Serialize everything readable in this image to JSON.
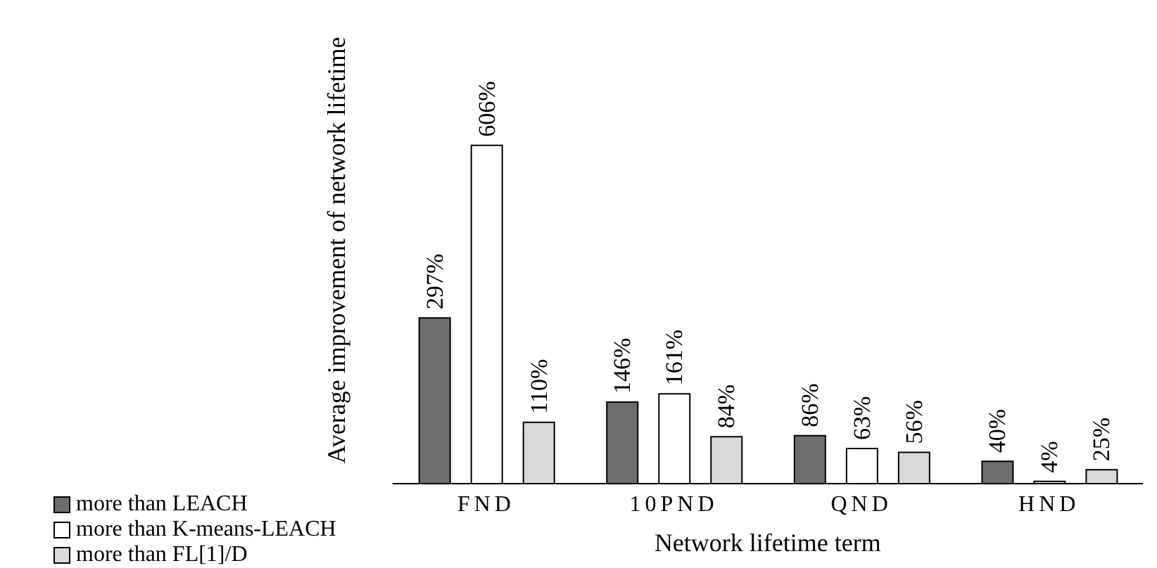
{
  "chart_data": {
    "type": "bar",
    "xlabel": "Network lifetime term",
    "ylabel": "Average improvement of network lifetime",
    "categories": [
      "FND",
      "10PND",
      "QND",
      "HND"
    ],
    "series": [
      {
        "name": "more than LEACH",
        "color": "#6e6e6e",
        "values": [
          297,
          146,
          86,
          40
        ],
        "value_labels": [
          "297%",
          "146%",
          "86%",
          "40%"
        ]
      },
      {
        "name": "more than K-means-LEACH",
        "color": "#ffffff",
        "values": [
          606,
          161,
          63,
          4
        ],
        "value_labels": [
          "606%",
          "161%",
          "63%",
          "4%"
        ]
      },
      {
        "name": "more than FL[1]/D",
        "color": "#d9d9d9",
        "values": [
          110,
          84,
          56,
          25
        ],
        "value_labels": [
          "110%",
          "84%",
          "56%",
          "25%"
        ]
      }
    ],
    "legend": "bottom left",
    "grid": false
  }
}
